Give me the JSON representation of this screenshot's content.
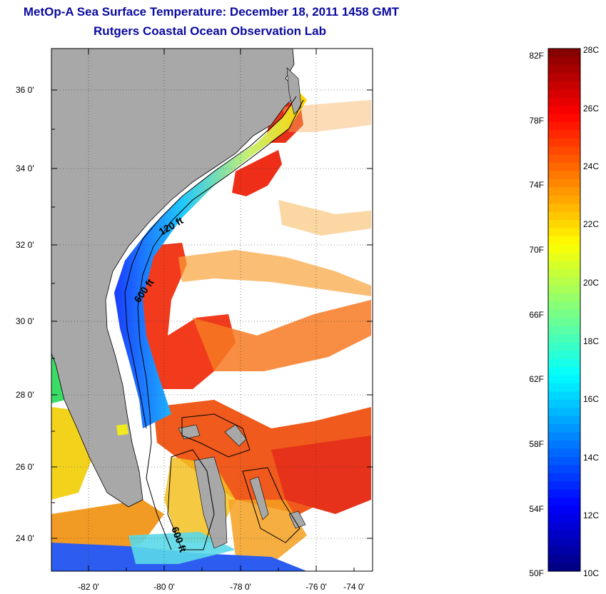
{
  "title": {
    "line1": "MetOp-A Sea Surface Temperature:  December 18, 2011 1458 GMT",
    "line2": "Rutgers Coastal Ocean Observation Lab"
  },
  "map": {
    "lat_labels": [
      "36 0'",
      "34 0'",
      "32 0'",
      "30 0'",
      "28 0'",
      "26 0'",
      "24 0'"
    ],
    "lon_labels": [
      "-82 0'",
      "-80 0'",
      "-78 0'",
      "-76 0'",
      "-74 0'"
    ],
    "contour_labels": [
      "120 ft",
      "600 ft",
      "600 ft"
    ],
    "land_color": "#a8a8a8"
  },
  "colorbar": {
    "f_labels": [
      "82F",
      "78F",
      "74F",
      "70F",
      "66F",
      "62F",
      "58F",
      "54F",
      "50F"
    ],
    "c_labels": [
      "28C",
      "26C",
      "24C",
      "22C",
      "20C",
      "18C",
      "16C",
      "14C",
      "12C",
      "10C"
    ],
    "colormap": "jet"
  }
}
